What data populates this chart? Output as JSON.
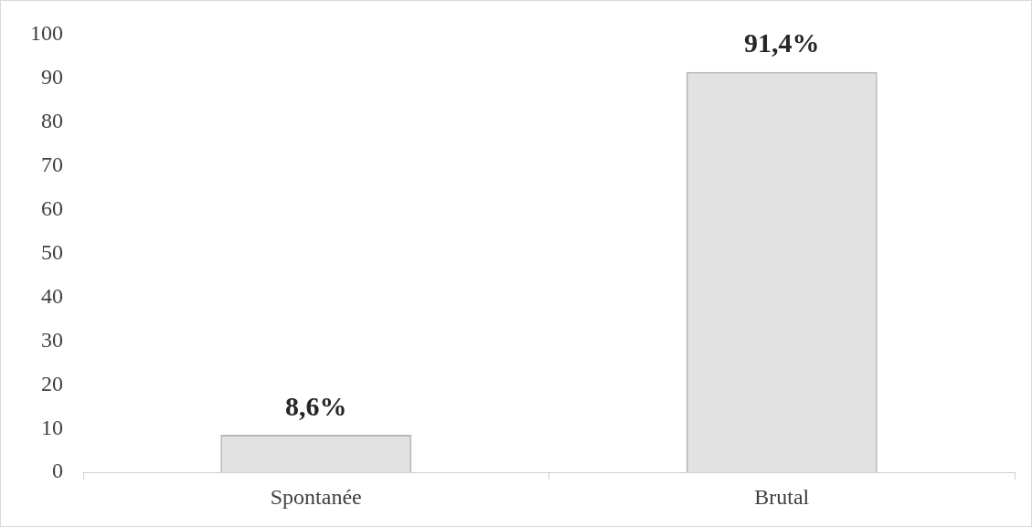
{
  "chart_data": {
    "type": "bar",
    "categories": [
      "Spontanée",
      "Brutal"
    ],
    "values": [
      8.6,
      91.4
    ],
    "color": "#e2e2e2",
    "value_labels": [
      "8,6%",
      "91,4%"
    ],
    "ylim": [
      0,
      100
    ],
    "yticks": [
      0,
      10,
      20,
      30,
      40,
      50,
      60,
      70,
      80,
      90,
      100
    ]
  }
}
